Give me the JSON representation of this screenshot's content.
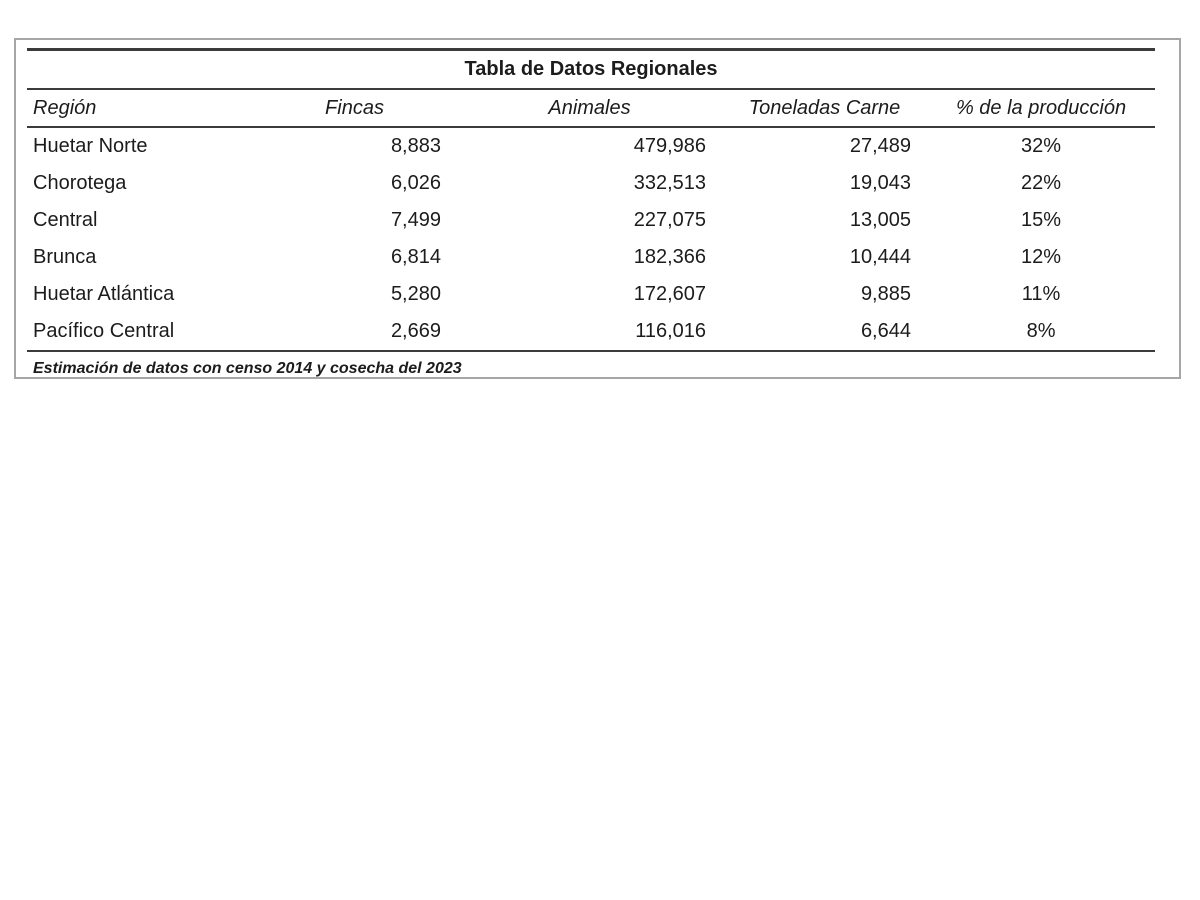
{
  "table": {
    "title": "Tabla de Datos Regionales",
    "columns": [
      "Región",
      "Fincas",
      "Animales",
      "Toneladas Carne",
      "% de la producción"
    ],
    "rows": [
      [
        "Huetar Norte",
        "8,883",
        "479,986",
        "27,489",
        "32%"
      ],
      [
        "Chorotega",
        "6,026",
        "332,513",
        "19,043",
        "22%"
      ],
      [
        "Central",
        "7,499",
        "227,075",
        "13,005",
        "15%"
      ],
      [
        "Brunca",
        "6,814",
        "182,366",
        "10,444",
        "12%"
      ],
      [
        "Huetar Atlántica",
        "5,280",
        "172,607",
        "9,885",
        "11%"
      ],
      [
        "Pacífico Central",
        "2,669",
        "116,016",
        "6,644",
        "8%"
      ]
    ],
    "footnote": "Estimación de datos con censo 2014 y cosecha del 2023"
  },
  "chart_data": {
    "type": "table",
    "title": "Tabla de Datos Regionales",
    "columns": [
      "Región",
      "Fincas",
      "Animales",
      "Toneladas Carne",
      "% de la producción"
    ],
    "rows": [
      {
        "region": "Huetar Norte",
        "fincas": 8883,
        "animales": 479986,
        "toneladas_carne": 27489,
        "pct_produccion": 32
      },
      {
        "region": "Chorotega",
        "fincas": 6026,
        "animales": 332513,
        "toneladas_carne": 19043,
        "pct_produccion": 22
      },
      {
        "region": "Central",
        "fincas": 7499,
        "animales": 227075,
        "toneladas_carne": 13005,
        "pct_produccion": 15
      },
      {
        "region": "Brunca",
        "fincas": 6814,
        "animales": 182366,
        "toneladas_carne": 10444,
        "pct_produccion": 12
      },
      {
        "region": "Huetar Atlántica",
        "fincas": 5280,
        "animales": 172607,
        "toneladas_carne": 9885,
        "pct_produccion": 11
      },
      {
        "region": "Pacífico Central",
        "fincas": 2669,
        "animales": 116016,
        "toneladas_carne": 6644,
        "pct_produccion": 8
      }
    ],
    "footnote": "Estimación de datos con censo 2014 y cosecha del 2023",
    "colors": {
      "text": "#1c1c1c",
      "rule_lines": "#3b3b3b",
      "frame_border": "#a6a6a6",
      "background": "#ffffff"
    }
  }
}
